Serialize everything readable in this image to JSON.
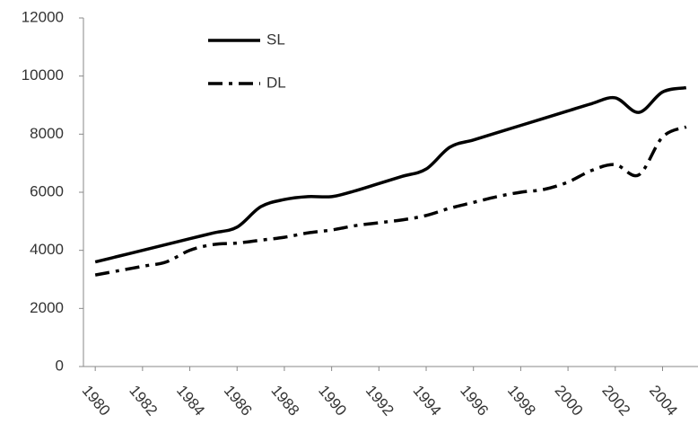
{
  "chart_data": {
    "type": "line",
    "x": [
      1980,
      1981,
      1982,
      1983,
      1984,
      1985,
      1986,
      1987,
      1988,
      1989,
      1990,
      1991,
      1992,
      1993,
      1994,
      1995,
      1996,
      1997,
      1998,
      1999,
      2000,
      2001,
      2002,
      2003,
      2004,
      2005
    ],
    "series": [
      {
        "name": "SL",
        "color": "#000000",
        "linestyle": "solid",
        "values": [
          3600,
          3800,
          4000,
          4200,
          4400,
          4600,
          4800,
          5500,
          5750,
          5850,
          5850,
          6050,
          6300,
          6550,
          6800,
          7550,
          7800,
          8050,
          8300,
          8550,
          8800,
          9050,
          9250,
          8750,
          9450,
          9600
        ]
      },
      {
        "name": "DL",
        "color": "#000000",
        "linestyle": "dashdot",
        "values": [
          3150,
          3300,
          3450,
          3600,
          4000,
          4200,
          4250,
          4350,
          4450,
          4600,
          4700,
          4850,
          4950,
          5050,
          5200,
          5450,
          5650,
          5850,
          6000,
          6100,
          6350,
          6750,
          6950,
          6600,
          7900,
          8250
        ]
      }
    ],
    "xlim": [
      1979.5,
      2005.5
    ],
    "xticks": [
      1980,
      1982,
      1984,
      1986,
      1988,
      1990,
      1992,
      1994,
      1996,
      1998,
      2000,
      2002,
      2004
    ],
    "ylim": [
      0,
      12000
    ],
    "yticks": [
      0,
      2000,
      4000,
      6000,
      8000,
      10000,
      12000
    ],
    "legend": "upper left",
    "grid": false
  }
}
